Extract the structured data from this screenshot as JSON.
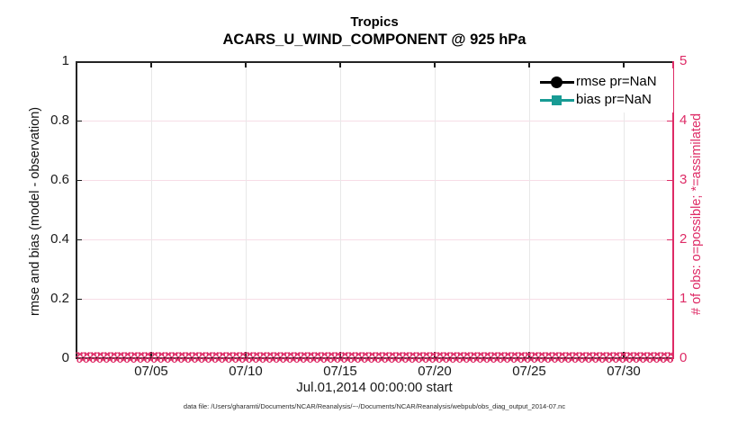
{
  "title": {
    "line1": "Tropics",
    "line2": "ACARS_U_WIND_COMPONENT @ 925 hPa"
  },
  "axes": {
    "left": {
      "label": "rmse and bias (model - observation)",
      "ticks": [
        "1",
        "0.8",
        "0.6",
        "0.4",
        "0.2",
        "0"
      ],
      "color": "#1a1a1a"
    },
    "right": {
      "label": "# of obs: o=possible; *=assimilated",
      "ticks": [
        "5",
        "4",
        "3",
        "2",
        "1",
        "0"
      ],
      "color": "#de2b66"
    },
    "x": {
      "ticks": [
        "07/05",
        "07/10",
        "07/15",
        "07/20",
        "07/25",
        "07/30"
      ],
      "label": "Jul.01,2014 00:00:00 start"
    }
  },
  "legend": {
    "items": [
      {
        "label": "rmse pr=NaN",
        "color": "#000000",
        "marker": "circle"
      },
      {
        "label": "bias pr=NaN",
        "color": "#189b94",
        "marker": "square"
      }
    ]
  },
  "band": {
    "possible_glyph": "o",
    "assimilated_glyph": "×",
    "color": "#de2b66"
  },
  "footer": "data file: /Users/gharamti/Documents/NCAR/Reanalysis/~-/Documents/NCAR/Reanalysis/webpub/obs_diag_output_2014-07.nc",
  "chart_data": {
    "type": "line",
    "title": "Tropics",
    "subtitle": "ACARS_U_WIND_COMPONENT @ 925 hPa",
    "xlabel": "Jul.01,2014 00:00:00 start",
    "ylabel_left": "rmse and bias (model - observation)",
    "ylabel_right": "# of obs: o=possible; *=assimilated",
    "x_ticks": [
      "07/05",
      "07/10",
      "07/15",
      "07/20",
      "07/25",
      "07/30"
    ],
    "xlim": [
      "2014-07-01 00:00:00",
      "2014-08-01"
    ],
    "ylim_left": [
      0,
      1
    ],
    "ylim_right": [
      0,
      5
    ],
    "grid": true,
    "legend_position": "northeast",
    "series": [
      {
        "name": "rmse pr=NaN",
        "axis": "left",
        "marker": "circle",
        "color": "#000000",
        "values": [
          "NaN",
          "NaN",
          "NaN",
          "NaN",
          "NaN",
          "NaN"
        ],
        "note": "rmse is NaN for the whole month; no curve drawn"
      },
      {
        "name": "bias pr=NaN",
        "axis": "left",
        "marker": "square",
        "color": "#189b94",
        "values": [
          "NaN",
          "NaN",
          "NaN",
          "NaN",
          "NaN",
          "NaN"
        ],
        "note": "bias is NaN for the whole month; no curve drawn"
      },
      {
        "name": "# of obs possible (o)",
        "axis": "right",
        "marker": "o",
        "color": "#de2b66",
        "values": [
          0,
          0,
          0,
          0,
          0,
          0
        ],
        "note": "constant 0 at every time bin Jul 1 - Aug 1; dense o markers along y=0"
      },
      {
        "name": "# of obs assimilated (*)",
        "axis": "right",
        "marker": "x",
        "color": "#de2b66",
        "values": [
          0,
          0,
          0,
          0,
          0,
          0
        ],
        "note": "constant 0 at every time bin Jul 1 - Aug 1; dense x markers along y=0"
      }
    ]
  }
}
